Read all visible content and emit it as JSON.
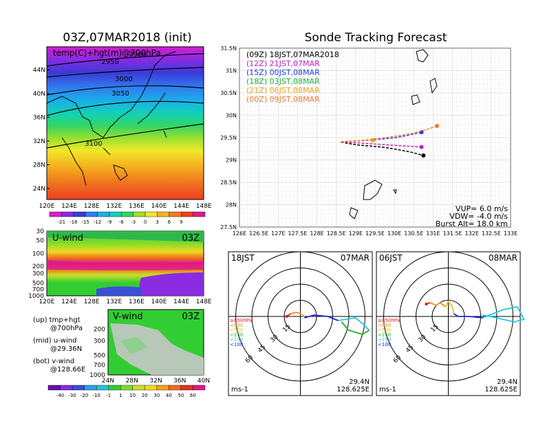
{
  "map_panel": {
    "title": "03Z,07MAR2018 (init)",
    "overlay_label": "temp(C)+hgt(m)@700hPa",
    "lat_ticks": [
      "24N",
      "28N",
      "32N",
      "36N",
      "40N",
      "44N"
    ],
    "lon_ticks": [
      "120E",
      "124E",
      "128E",
      "132E",
      "136E",
      "140E",
      "144E",
      "148E"
    ],
    "contour_labels": [
      "2900",
      "2950",
      "3000",
      "3050",
      "3100"
    ],
    "colorbar_labels": [
      "-21",
      "-18",
      "-15",
      "-12",
      "-9",
      "-6",
      "-3",
      "0",
      "3",
      "6",
      "9"
    ],
    "colorbar_colors": [
      "#d51ecf",
      "#8a2be2",
      "#3a3ad6",
      "#2f7ff0",
      "#18b3e6",
      "#12d2b3",
      "#36d463",
      "#9be02f",
      "#f0e82a",
      "#f5b21e",
      "#f07a1f",
      "#ee3d22",
      "#e0188c"
    ]
  },
  "u_panel": {
    "label": "U-wind",
    "time": "03Z",
    "pressure_ticks": [
      "30",
      "50",
      "100",
      "200",
      "300",
      "500",
      "700",
      "1000"
    ],
    "lon_ticks": [
      "120E",
      "124E",
      "128E",
      "132E",
      "136E",
      "140E",
      "144E",
      "148E"
    ]
  },
  "v_panel": {
    "label": "V-wind",
    "time": "03Z",
    "pressure_ticks": [
      "200",
      "300",
      "500",
      "700",
      "1000"
    ],
    "lat_ticks": [
      "24N",
      "28N",
      "32N",
      "36N",
      "40N"
    ]
  },
  "panel_notes": [
    [
      "(up) tmp+hgt",
      "@700hPa"
    ],
    [
      "(mid) u-wind",
      "@29.36N"
    ],
    [
      "(bot) v-wind",
      "@128.66E"
    ]
  ],
  "wind_colorbar": {
    "labels": [
      "-40",
      "-30",
      "-20",
      "-10",
      "-1",
      "1",
      "10",
      "20",
      "30",
      "40",
      "50",
      "60"
    ],
    "colors": [
      "#6a0dad",
      "#8a2be2",
      "#3a4fd6",
      "#2f9fe8",
      "#20c8d8",
      "#32cd32",
      "#7ddc28",
      "#c8e02a",
      "#f0d824",
      "#f5a01e",
      "#f06a1e",
      "#e8301e",
      "#e0188c"
    ]
  },
  "track_title": "Sonde Tracking Forecast",
  "track_info": {
    "vup": "VUP= 6.0 m/s",
    "vdw": "VDW= -4.0 m/s",
    "burst": "Burst Alt= 18.0 km"
  },
  "polar_common": {
    "ring_labels": [
      "15",
      "30",
      "45",
      "60"
    ],
    "unit": "ms-1",
    "lat": "29.4N",
    "lon": "128.625E",
    "legend": [
      {
        "label": "≥850hPa",
        "color": "#e02020"
      },
      {
        "label": "<850",
        "color": "#f08a20"
      },
      {
        "label": "<500",
        "color": "#e8c020"
      },
      {
        "label": "<250",
        "color": "#20b020"
      },
      {
        "label": "<150",
        "color": "#20c8e0"
      },
      {
        "label": "<100",
        "color": "#2020e0"
      }
    ]
  },
  "polar_left": {
    "time": "18JST",
    "date": "07MAR"
  },
  "polar_right": {
    "time": "06JST",
    "date": "08MAR"
  },
  "chart_data": {
    "type": "line",
    "title": "Sonde Tracking Forecast",
    "xlim": [
      126,
      133
    ],
    "ylim": [
      27.5,
      31.5
    ],
    "x_ticks": [
      "126E",
      "126.5E",
      "127E",
      "127.5E",
      "128E",
      "128.5E",
      "129E",
      "129.5E",
      "130E",
      "130.5E",
      "131E",
      "131.5E",
      "132E",
      "132.5E",
      "133E"
    ],
    "y_ticks": [
      "27.5N",
      "28N",
      "28.5N",
      "29N",
      "29.5N",
      "30N",
      "30.5N",
      "31N",
      "31.5N"
    ],
    "grid": true,
    "series": [
      {
        "name": "(09Z)  18JST,07MAR2018",
        "color": "#000000",
        "x": [
          128.62,
          128.8,
          129.1,
          129.4,
          129.75,
          130.1,
          130.45,
          130.75
        ],
        "y": [
          29.4,
          29.37,
          29.33,
          29.31,
          29.28,
          29.23,
          29.17,
          29.1
        ]
      },
      {
        "name": "(12Z)  21JST,07MAR",
        "color": "#c020c0",
        "x": [
          128.62,
          128.9,
          129.25,
          129.6,
          129.95,
          130.3,
          130.7
        ],
        "y": [
          29.4,
          29.39,
          29.37,
          29.35,
          29.33,
          29.31,
          29.29
        ]
      },
      {
        "name": "(15Z)  00JST,08MAR",
        "color": "#2040e0",
        "x": [
          128.62,
          128.95,
          129.3,
          129.7,
          130.05,
          130.4,
          130.7
        ],
        "y": [
          29.41,
          29.42,
          29.44,
          29.47,
          29.5,
          29.56,
          29.62
        ]
      },
      {
        "name": "(18Z)  03JST,08MAR",
        "color": "#20b040",
        "x": [
          128.62,
          128.9,
          129.2,
          129.45
        ],
        "y": [
          29.41,
          29.42,
          29.43,
          29.44
        ]
      },
      {
        "name": "(21Z)  06JST,08MAR",
        "color": "#f0a020",
        "x": [
          128.62,
          128.9,
          129.2,
          129.45
        ],
        "y": [
          29.41,
          29.42,
          29.43,
          29.44
        ]
      },
      {
        "name": "(00Z)  09JST,08MAR",
        "color": "#f07a30",
        "x": [
          128.62,
          128.95,
          129.3,
          129.7,
          130.1,
          130.5,
          130.8,
          131.1
        ],
        "y": [
          29.41,
          29.42,
          29.45,
          29.49,
          29.54,
          29.6,
          29.67,
          29.76
        ]
      }
    ]
  }
}
